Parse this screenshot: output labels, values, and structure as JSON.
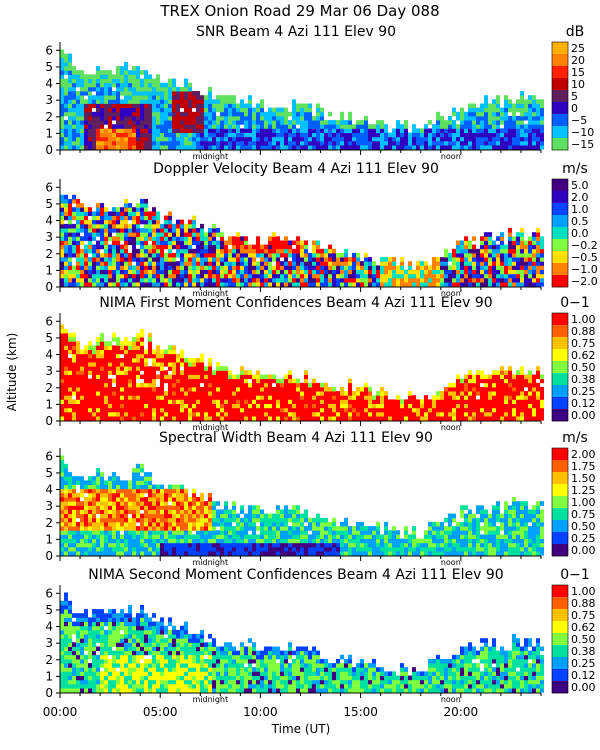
{
  "chart_data": {
    "type": "heatmap",
    "suptitle": "TREX Onion Road  29 Mar 06 Day 088",
    "ylabel": "Altitude (km)",
    "xlabel": "Time (UT)",
    "xlim_hours": [
      0,
      24
    ],
    "ylim_km": [
      0,
      6.5
    ],
    "x_ticks": [
      {
        "label": "00:00",
        "hour": 0
      },
      {
        "label": "05:00",
        "hour": 5
      },
      {
        "label": "10:00",
        "hour": 10
      },
      {
        "label": "15:00",
        "hour": 15
      },
      {
        "label": "20:00",
        "hour": 20
      }
    ],
    "time_markers": [
      {
        "label": "midnight",
        "hour": 7.5
      },
      {
        "label": "noon",
        "hour": 19.5
      }
    ],
    "y_ticks": [
      0,
      1,
      2,
      3,
      4,
      5,
      6
    ],
    "panels": [
      {
        "title": "SNR Beam 4 Azi 111 Elev 90",
        "unit": "dB",
        "scale": [
          "25",
          "20",
          "15",
          "10",
          "5",
          "0",
          "−5",
          "−10",
          "−15"
        ],
        "colors": [
          "#ffb000",
          "#ff8000",
          "#ff2000",
          "#c00000",
          "#602060",
          "#3000c0",
          "#0060ff",
          "#00c0ff",
          "#60e060"
        ],
        "pattern": "snr"
      },
      {
        "title": "Doppler Velocity Beam 4 Azi 111 Elev 90",
        "unit": "m/s",
        "scale": [
          "5.0",
          "2.0",
          "1.0",
          "0.5",
          "0.0",
          "−0.2",
          "−0.5",
          "−1.0",
          "−2.0"
        ],
        "colors": [
          "#400080",
          "#3000c0",
          "#0040ff",
          "#00a0ff",
          "#00e0c0",
          "#80ff40",
          "#ffe000",
          "#ff8000",
          "#ff0000"
        ],
        "pattern": "doppler"
      },
      {
        "title": "NIMA First Moment Confidences Beam 4 Azi 111 Elev 90",
        "unit": "0−1",
        "scale": [
          "1.00",
          "0.88",
          "0.75",
          "0.62",
          "0.50",
          "0.38",
          "0.25",
          "0.12",
          "0.00"
        ],
        "colors": [
          "#ff0000",
          "#ff6000",
          "#ffc000",
          "#ffff00",
          "#80ff40",
          "#00e0a0",
          "#00a0ff",
          "#0040ff",
          "#400080"
        ],
        "pattern": "conf1"
      },
      {
        "title": "Spectral Width Beam 4 Azi 111 Elev 90",
        "unit": "m/s",
        "scale": [
          "2.00",
          "1.75",
          "1.50",
          "1.25",
          "1.00",
          "0.75",
          "0.50",
          "0.25",
          "0.00"
        ],
        "colors": [
          "#ff0000",
          "#ff6000",
          "#ffc000",
          "#ffff00",
          "#80ff40",
          "#00e0a0",
          "#00a0ff",
          "#0040ff",
          "#400080"
        ],
        "pattern": "width"
      },
      {
        "title": "NIMA Second Moment Confidences Beam 4 Azi 111 Elev 90",
        "unit": "0−1",
        "scale": [
          "1.00",
          "0.88",
          "0.75",
          "0.62",
          "0.50",
          "0.38",
          "0.25",
          "0.12",
          "0.00"
        ],
        "colors": [
          "#ff0000",
          "#ff6000",
          "#ffc000",
          "#ffff00",
          "#80ff40",
          "#00e0a0",
          "#00a0ff",
          "#0040ff",
          "#400080"
        ],
        "pattern": "conf2"
      }
    ],
    "echo_top_km": [
      {
        "hour": 0.0,
        "top": 5.9
      },
      {
        "hour": 1.0,
        "top": 4.6
      },
      {
        "hour": 2.0,
        "top": 4.9
      },
      {
        "hour": 3.0,
        "top": 4.7
      },
      {
        "hour": 4.0,
        "top": 5.0
      },
      {
        "hour": 5.0,
        "top": 4.3
      },
      {
        "hour": 6.0,
        "top": 3.9
      },
      {
        "hour": 7.0,
        "top": 3.6
      },
      {
        "hour": 8.0,
        "top": 3.0
      },
      {
        "hour": 9.0,
        "top": 2.8
      },
      {
        "hour": 10.0,
        "top": 2.6
      },
      {
        "hour": 11.0,
        "top": 2.7
      },
      {
        "hour": 12.0,
        "top": 2.6
      },
      {
        "hour": 13.0,
        "top": 2.2
      },
      {
        "hour": 14.0,
        "top": 2.0
      },
      {
        "hour": 15.0,
        "top": 1.8
      },
      {
        "hour": 16.0,
        "top": 1.5
      },
      {
        "hour": 17.0,
        "top": 1.3
      },
      {
        "hour": 18.0,
        "top": 1.2
      },
      {
        "hour": 19.0,
        "top": 2.0
      },
      {
        "hour": 20.0,
        "top": 2.6
      },
      {
        "hour": 21.0,
        "top": 2.8
      },
      {
        "hour": 22.0,
        "top": 2.9
      },
      {
        "hour": 23.0,
        "top": 3.0
      },
      {
        "hour": 24.0,
        "top": 3.0
      }
    ]
  }
}
